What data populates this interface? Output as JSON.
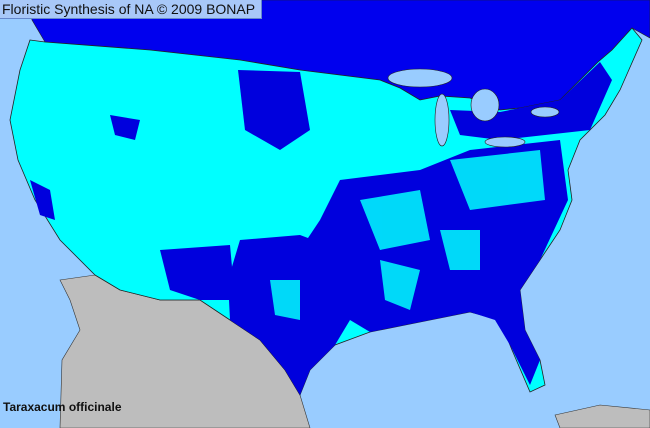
{
  "title": "Floristic Synthesis of NA © 2009 BONAP",
  "species": "Taraxacum officinale",
  "colors": {
    "ocean": "#99ccff",
    "canada": "#0000ee",
    "us_base": "#00ffff",
    "county_present": "#0000dd",
    "mexico": "#bdbdbd",
    "lakes": "#99ccff",
    "county_lines": "#333333"
  }
}
